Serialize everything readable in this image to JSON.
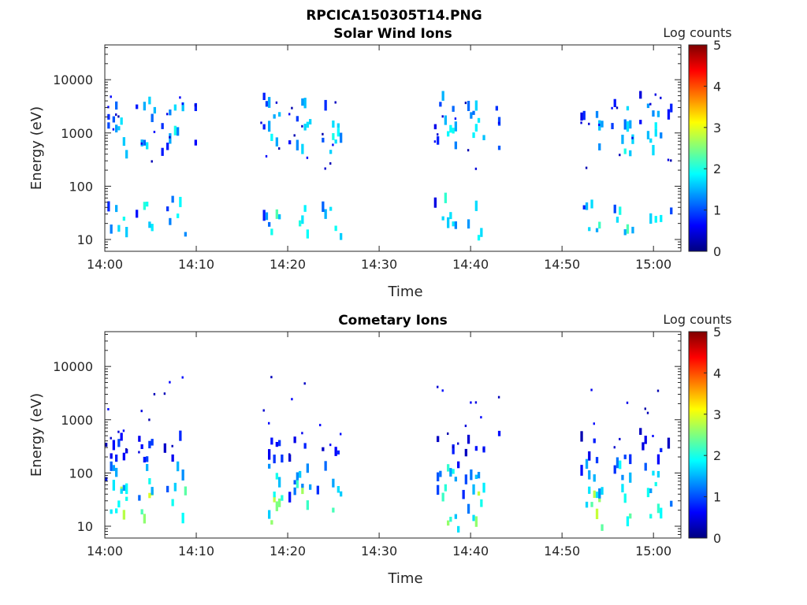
{
  "figure_title": "RPCICA150305T14.PNG",
  "colormap": [
    "#00007f",
    "#0000ff",
    "#007fff",
    "#00ffff",
    "#7fff7f",
    "#ffff00",
    "#ff7f00",
    "#ff0000",
    "#7f0000"
  ],
  "chart_data": [
    {
      "type": "heatmap",
      "title": "Solar Wind Ions",
      "xlabel": "Time",
      "ylabel": "Energy (eV)",
      "y_scale": "log",
      "ylim": [
        6,
        45000
      ],
      "xlim": [
        "14:00",
        "15:03"
      ],
      "x_ticks": [
        "14:00",
        "14:10",
        "14:20",
        "14:30",
        "14:40",
        "14:50",
        "15:00"
      ],
      "y_ticks": [
        "10",
        "100",
        "1000",
        "10000"
      ],
      "colorbar": {
        "label": "Log counts",
        "range": [
          0,
          5
        ],
        "ticks": [
          "0",
          "1",
          "2",
          "3",
          "4",
          "5"
        ]
      },
      "bursts": [
        {
          "start": "14:00",
          "end": "14:10"
        },
        {
          "start": "14:17",
          "end": "14:26"
        },
        {
          "start": "14:36",
          "end": "14:43"
        },
        {
          "start": "14:52",
          "end": "15:02"
        }
      ],
      "bands": [
        {
          "energy_eV": 20,
          "peak_log_counts": 2.3
        },
        {
          "energy_eV": 650,
          "peak_log_counts": 2.1
        },
        {
          "energy_eV": 2000,
          "peak_log_counts": 1.9
        }
      ]
    },
    {
      "type": "heatmap",
      "title": "Cometary Ions",
      "xlabel": "Time",
      "ylabel": "Energy (eV)",
      "y_scale": "log",
      "ylim": [
        6,
        45000
      ],
      "xlim": [
        "14:00",
        "15:03"
      ],
      "x_ticks": [
        "14:00",
        "14:10",
        "14:20",
        "14:30",
        "14:40",
        "14:50",
        "15:00"
      ],
      "y_ticks": [
        "10",
        "100",
        "1000",
        "10000"
      ],
      "colorbar": {
        "label": "Log counts",
        "range": [
          0,
          5
        ],
        "ticks": [
          "0",
          "1",
          "2",
          "3",
          "4",
          "5"
        ]
      },
      "bursts": [
        {
          "start": "14:00",
          "end": "14:10"
        },
        {
          "start": "14:17",
          "end": "14:26"
        },
        {
          "start": "14:36",
          "end": "14:43"
        },
        {
          "start": "14:52",
          "end": "15:02"
        }
      ],
      "bands": [
        {
          "energy_eV": 20,
          "peak_log_counts": 3.0
        },
        {
          "energy_eV": 60,
          "peak_log_counts": 2.2
        },
        {
          "energy_eV": 250,
          "peak_log_counts": 1.0
        }
      ]
    }
  ]
}
